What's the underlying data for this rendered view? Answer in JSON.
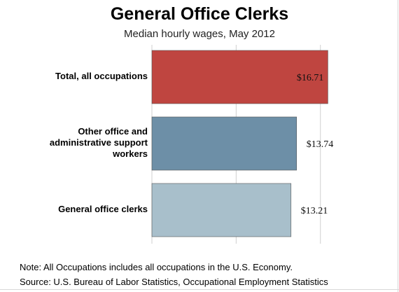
{
  "chart_data": {
    "type": "bar",
    "orientation": "horizontal",
    "title": "General Office Clerks",
    "subtitle": "Median hourly wages, May 2012",
    "categories": [
      "Total, all occupations",
      "Other office and administrative support workers",
      "General office clerks"
    ],
    "category_lines": [
      [
        "Total, all occupations"
      ],
      [
        "Other office and",
        "administrative support",
        "workers"
      ],
      [
        "General office clerks"
      ]
    ],
    "values": [
      16.71,
      13.74,
      13.21
    ],
    "value_labels": [
      "$16.71",
      "$13.74",
      "$13.21"
    ],
    "bar_colors": [
      "#bf4540",
      "#6d8fa7",
      "#a8bfcb"
    ],
    "xlim": [
      0,
      22
    ],
    "grid": true,
    "legend": "none"
  },
  "notes": {
    "note": "Note: All Occupations includes all occupations in the U.S. Economy.",
    "source": "Source: U.S. Bureau of Labor Statistics, Occupational Employment Statistics"
  }
}
